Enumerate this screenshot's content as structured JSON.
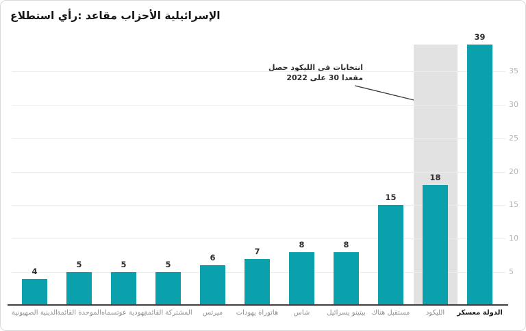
{
  "card": {
    "title": "استطلاع رأي: مقاعد الأحزاب الإسرائيلية"
  },
  "annotation": {
    "text": "حصل الليكود في انتخابات 2022 على 30 مقعدا",
    "line1": "حصل الليكود في انتخابات",
    "line2": "2022 على 30 مقعدا"
  },
  "colors": {
    "bar": "#0aa1ad",
    "highlight_band": "#e2e2e2",
    "grid": "#ececec",
    "axis_line": "#3f3f3f",
    "value_label": "#2e2e2e",
    "x_label": "#8f8f8f",
    "x_label_emphasis": "#141414",
    "y_tick_label": "#b4b4b4",
    "annotation_text": "#2e2e2e",
    "arrow": "#3c3c3c"
  },
  "chart_data": {
    "type": "bar",
    "title": "استطلاع رأي: مقاعد الأحزاب الإسرائيلية",
    "categories": [
      "الصهيونية الدينية",
      "القائمة الموحدة",
      "عوتسماه يهودية",
      "القائمة المشتركة",
      "ميرتس",
      "يهودات هاتوراة",
      "شاس",
      "يسرائيل بيتينو",
      "هناك مستقبل",
      "الليكود",
      "معسكر الدولة"
    ],
    "values": [
      4,
      5,
      5,
      5,
      6,
      7,
      8,
      8,
      15,
      18,
      39
    ],
    "highlighted_category": "الليكود",
    "highlight_note": "حصل الليكود في انتخابات 2022 على 30 مقعدا",
    "emphasized_category": "معسكر الدولة",
    "xlabel": "",
    "ylabel": "",
    "yticks": [
      5,
      10,
      15,
      20,
      25,
      30,
      35
    ],
    "ylim": [
      0,
      39
    ],
    "y_axis_side": "right",
    "grid": true,
    "legend": false
  }
}
